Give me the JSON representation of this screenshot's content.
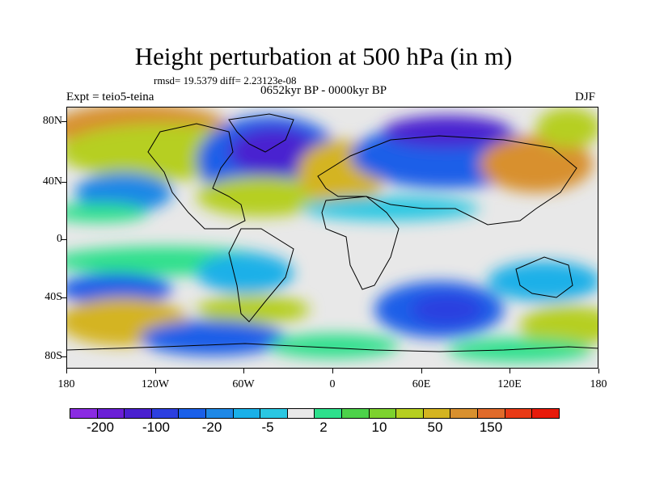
{
  "title": "Height perturbation at 500 hPa (in m)",
  "stats": "rmsd= 19.5379 diff= 2.23123e-08",
  "period": "0652kyr BP - 0000kyr BP",
  "expt": "Expt = teio5-teina",
  "season": "DJF",
  "lat_labels": [
    "80N",
    "40N",
    "0",
    "40S",
    "80S"
  ],
  "lon_labels": [
    "180",
    "120W",
    "60W",
    "0",
    "60E",
    "120E",
    "180"
  ],
  "colorbar": {
    "colors": [
      "#8a2be2",
      "#6a1fd6",
      "#4a20d0",
      "#2c3fe0",
      "#1a5fe8",
      "#1e88e6",
      "#1ab0e8",
      "#2ac7e2",
      "#e8e8e8",
      "#2de08c",
      "#4cd24a",
      "#7dd22e",
      "#b6cf20",
      "#d4b420",
      "#d8902e",
      "#e06a2a",
      "#e83a16",
      "#e81a0a"
    ],
    "labels": [
      "-200",
      "-100",
      "-20",
      "-5",
      "2",
      "10",
      "50",
      "150"
    ]
  },
  "map": {
    "lon_range": [
      -180,
      180
    ],
    "lat_range": [
      -90,
      90
    ]
  }
}
